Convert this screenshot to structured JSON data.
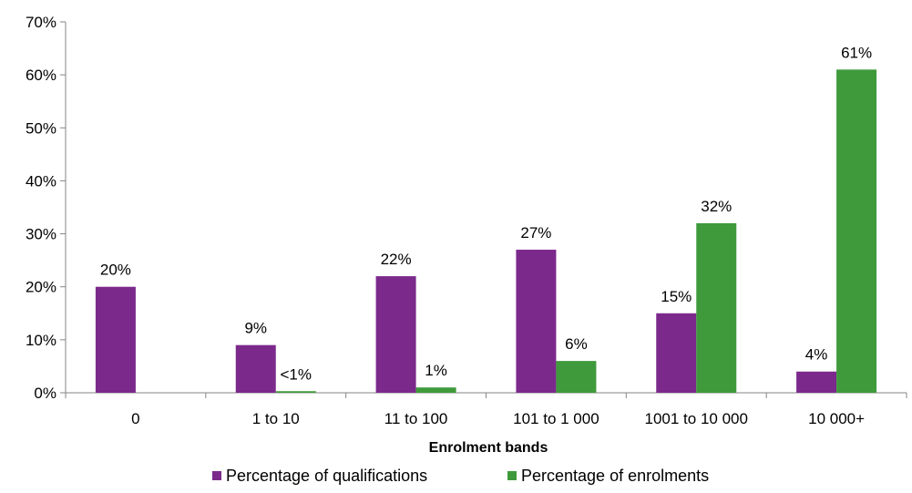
{
  "chart_data": {
    "type": "bar",
    "categories": [
      "0",
      "1 to 10",
      "11 to 100",
      "101 to 1 000",
      "1001 to 10 000",
      "10 000+"
    ],
    "series": [
      {
        "name": "Percentage of qualifications",
        "color": "#7B2A8C",
        "values": [
          20,
          9,
          22,
          27,
          15,
          4
        ],
        "labels": [
          "20%",
          "9%",
          "22%",
          "27%",
          "15%",
          "4%"
        ]
      },
      {
        "name": "Percentage of enrolments",
        "color": "#3F9A3B",
        "values": [
          0,
          0.3,
          1,
          6,
          32,
          61
        ],
        "labels": [
          "",
          "<1%",
          "1%",
          "6%",
          "32%",
          "61%"
        ]
      }
    ],
    "xlabel": "Enrolment bands",
    "ylabel": "",
    "ylim": [
      0,
      70
    ],
    "yticks": [
      "0%",
      "10%",
      "20%",
      "30%",
      "40%",
      "50%",
      "60%",
      "70%"
    ],
    "grid": false,
    "legend": "bottom"
  }
}
